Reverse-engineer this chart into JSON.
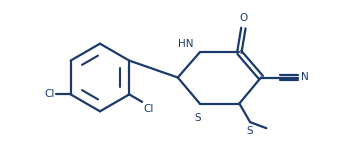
{
  "bg_color": "#ffffff",
  "line_color": "#1a3a6b",
  "line_width": 1.6,
  "fig_width": 3.42,
  "fig_height": 1.55,
  "dpi": 100,
  "font_size": 7.5,
  "xlim": [
    0,
    10
  ],
  "ylim": [
    0,
    4.5
  ]
}
